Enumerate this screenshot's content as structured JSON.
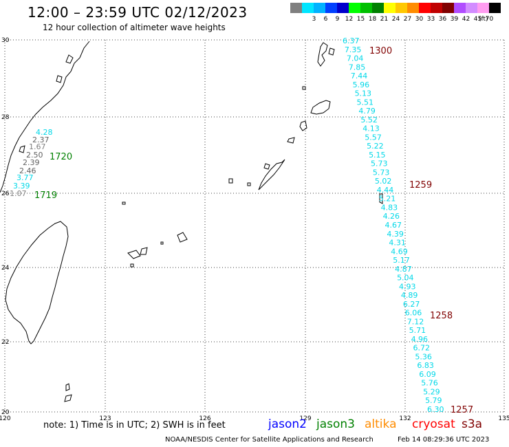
{
  "header": {
    "title": "12:00 – 23:59 UTC 02/12/2023",
    "subtitle": "12 hour collection of altimeter wave heights"
  },
  "scale": {
    "unit": "(ft)",
    "entries": [
      {
        "label": "",
        "color": "#7f7f7f"
      },
      {
        "label": "3",
        "color": "#00e5ff"
      },
      {
        "label": "6",
        "color": "#00b2ff"
      },
      {
        "label": "9",
        "color": "#0040ff"
      },
      {
        "label": "12",
        "color": "#0000cc"
      },
      {
        "label": "15",
        "color": "#00ff00"
      },
      {
        "label": "18",
        "color": "#00c000"
      },
      {
        "label": "21",
        "color": "#008000"
      },
      {
        "label": "24",
        "color": "#ffff00"
      },
      {
        "label": "27",
        "color": "#ffc800"
      },
      {
        "label": "30",
        "color": "#ff8c00"
      },
      {
        "label": "33",
        "color": "#ff0000"
      },
      {
        "label": "36",
        "color": "#c00000"
      },
      {
        "label": "39",
        "color": "#800000"
      },
      {
        "label": "42",
        "color": "#b04cff"
      },
      {
        "label": "45",
        "color": "#d28cff"
      },
      {
        "label": "70",
        "color": "#ff9cf0"
      },
      {
        "label": "",
        "color": "#000000"
      }
    ]
  },
  "axes": {
    "lat_labels": [
      "30",
      "28",
      "26",
      "24",
      "22",
      "20"
    ],
    "lon_labels": [
      "120",
      "123",
      "126",
      "129",
      "132",
      "135"
    ]
  },
  "tracks": [
    {
      "name": "track-jason3-west",
      "color": "#00cccc",
      "time_label": {
        "text": "1720",
        "color": "#008000"
      },
      "time_label_2": {
        "text": "1719",
        "color": "#008000"
      },
      "points": [
        {
          "text": "4.28",
          "color": "#00d8e8"
        },
        {
          "text": "2.37",
          "color": "#606060"
        },
        {
          "text": "1.67",
          "color": "#808080"
        },
        {
          "text": "2.50",
          "color": "#606060"
        },
        {
          "text": "2.39",
          "color": "#606060"
        },
        {
          "text": "2.46",
          "color": "#606060"
        },
        {
          "text": "3.77",
          "color": "#00d8e8"
        },
        {
          "text": "3.39",
          "color": "#00d8e8"
        },
        {
          "text": "1.07",
          "color": "#808080"
        }
      ]
    },
    {
      "name": "track-cryosat-east",
      "color": "#00d8e8",
      "time_labels": [
        {
          "text": "1300",
          "color": "#800000"
        },
        {
          "text": "1259",
          "color": "#800000"
        },
        {
          "text": "1258",
          "color": "#800000"
        },
        {
          "text": "1257",
          "color": "#800000"
        }
      ],
      "points": [
        "6.37",
        "7.35",
        "7.04",
        "7.85",
        "7.44",
        "5.96",
        "5.13",
        "5.51",
        "4.79",
        "5.52",
        "4.13",
        "5.57",
        "5.22",
        "5.15",
        "5.73",
        "5.73",
        "5.02",
        "4.44",
        "5.21",
        "4.83",
        "4.26",
        "4.67",
        "4.39",
        "4.31",
        "4.69",
        "5.17",
        "4.87",
        "5.04",
        "4.93",
        "4.89",
        "6.27",
        "6.06",
        "7.12",
        "5.71",
        "4.96",
        "6.72",
        "5.36",
        "6.83",
        "6.09",
        "5.76",
        "5.29",
        "5.79",
        "6.30"
      ]
    }
  ],
  "notes": {
    "note": "note:  1) Time is in UTC;  2) SWH is in feet",
    "satellites": [
      {
        "name": "jason2",
        "color": "#0000ff"
      },
      {
        "name": "jason3",
        "color": "#008000"
      },
      {
        "name": "altika",
        "color": "#ff8c00"
      },
      {
        "name": "cryosat",
        "color": "#ff0000"
      },
      {
        "name": "s3a",
        "color": "#800000"
      }
    ],
    "footer_left": "NOAA/NESDIS Center for Satellite Applications and Research",
    "footer_right": "Feb 14 08:29:36 UTC 2023"
  }
}
